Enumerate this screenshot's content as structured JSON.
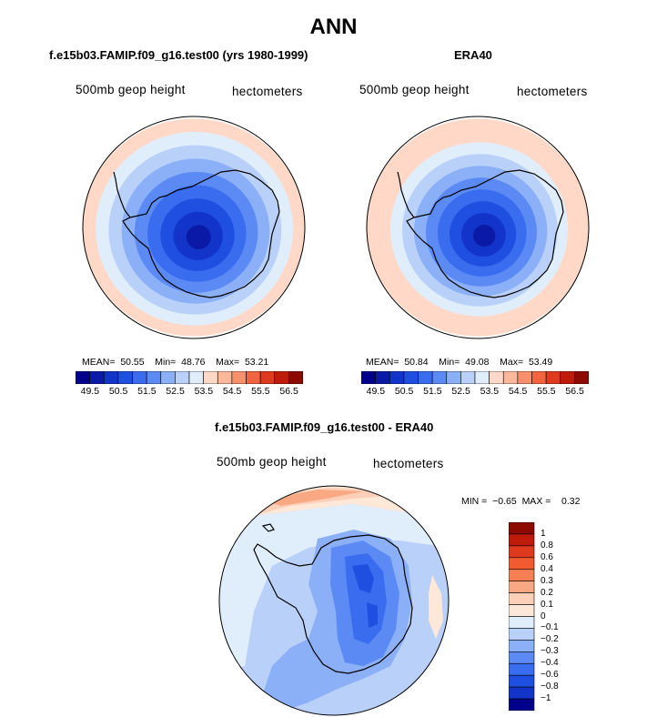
{
  "chart_data": [
    {
      "type": "heatmap",
      "projection": "south-polar-stereographic",
      "title": "f.e15b03.FAMIP.f09_g16.test00 (yrs 1980-1999)",
      "left_label": "500mb geop height",
      "right_label": "hectometers",
      "stats": {
        "mean_label": "MEAN=",
        "mean": "50.55",
        "min_label": "Min=",
        "min": "48.76",
        "max_label": "Max=",
        "max": "53.21"
      },
      "levels": [
        "49.5",
        "50.5",
        "51.5",
        "52.5",
        "53.5",
        "54.5",
        "55.5",
        "56.5"
      ],
      "colors": [
        "#00008b",
        "#0a1aa6",
        "#1234c8",
        "#1e4fe0",
        "#3a6cf0",
        "#5b8af5",
        "#8bb0f7",
        "#b9d0f8",
        "#e0eefb",
        "#ffd8c8",
        "#fcb89b",
        "#f8906b",
        "#f2643f",
        "#e03a1e",
        "#c01a0a",
        "#8c0a00"
      ],
      "zone_values": [
        53.1,
        52.8,
        52.3,
        51.8,
        51.3,
        50.8,
        50.3,
        49.7,
        49.2
      ]
    },
    {
      "type": "heatmap",
      "projection": "south-polar-stereographic",
      "title": "ERA40",
      "left_label": "500mb geop height",
      "right_label": "hectometers",
      "stats": {
        "mean_label": "MEAN=",
        "mean": "50.84",
        "min_label": "Min=",
        "min": "49.08",
        "max_label": "Max=",
        "max": "53.49"
      },
      "levels": [
        "49.5",
        "50.5",
        "51.5",
        "52.5",
        "53.5",
        "54.5",
        "55.5",
        "56.5"
      ],
      "colors": [
        "#00008b",
        "#0a1aa6",
        "#1234c8",
        "#1e4fe0",
        "#3a6cf0",
        "#5b8af5",
        "#8bb0f7",
        "#b9d0f8",
        "#e0eefb",
        "#ffd8c8",
        "#fcb89b",
        "#f8906b",
        "#f2643f",
        "#e03a1e",
        "#c01a0a",
        "#8c0a00"
      ],
      "zone_values": [
        53.4,
        53.1,
        52.8,
        52.3,
        51.8,
        51.3,
        50.8,
        50.3,
        49.8,
        49.2
      ]
    },
    {
      "type": "heatmap",
      "projection": "south-polar-stereographic",
      "title": "f.e15b03.FAMIP.f09_g16.test00 - ERA40",
      "left_label": "500mb geop height",
      "right_label": "hectometers",
      "stats": {
        "min_label": "MIN =",
        "min": "−0.65",
        "max_label": "MAX =",
        "max": "0.32"
      },
      "levels": [
        "1",
        "0.8",
        "0.6",
        "0.4",
        "0.3",
        "0.2",
        "0.1",
        "0",
        "−0.1",
        "−0.2",
        "−0.3",
        "−0.4",
        "−0.6",
        "−0.8",
        "−1"
      ],
      "colors": [
        "#8c0a00",
        "#c01a0a",
        "#e03a1e",
        "#f25a30",
        "#f57f52",
        "#f8a882",
        "#fcd0b8",
        "#ffe8d8",
        "#e0eefb",
        "#b9d0f8",
        "#8bb0f7",
        "#5b8af5",
        "#3a6cf0",
        "#1e4fe0",
        "#1234c8",
        "#00008b"
      ]
    }
  ],
  "header": {
    "title": "ANN"
  }
}
